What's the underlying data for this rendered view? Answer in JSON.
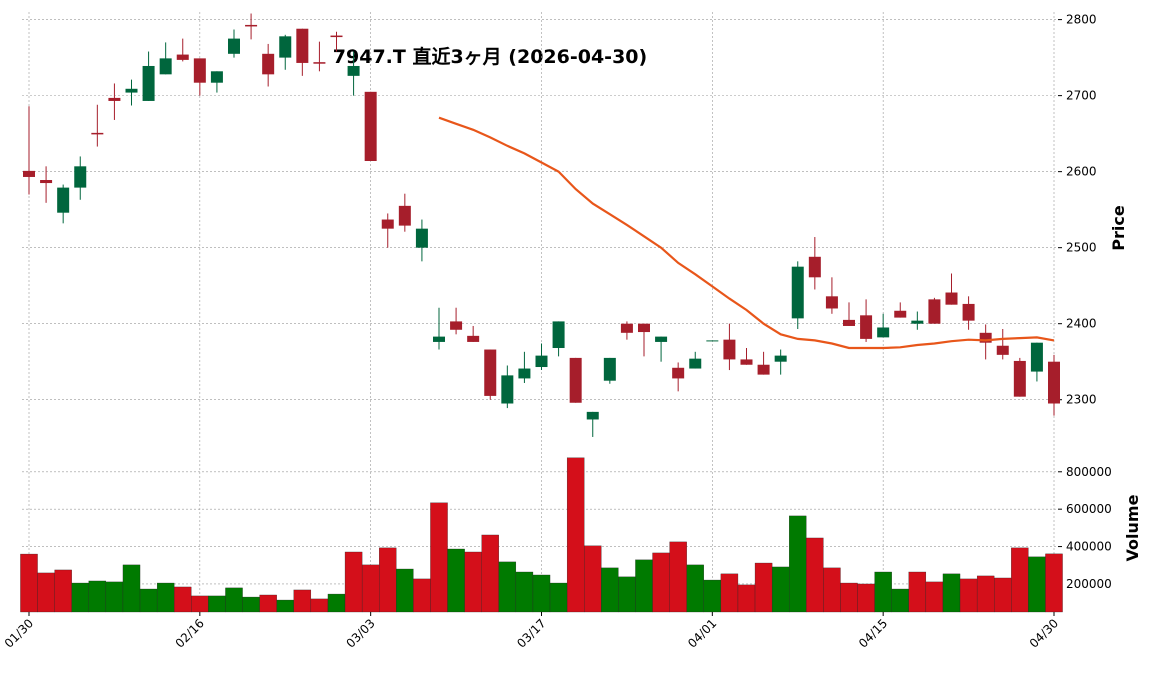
{
  "chart_data": {
    "type": "candlestick",
    "title": "7947.T 直近3ヶ月 (2026-04-30)",
    "categories": [
      "01/30",
      null,
      null,
      null,
      null,
      null,
      null,
      null,
      null,
      null,
      "02/16",
      null,
      null,
      null,
      null,
      null,
      null,
      null,
      null,
      null,
      "03/03",
      null,
      null,
      null,
      null,
      null,
      null,
      null,
      null,
      null,
      "03/17",
      null,
      null,
      null,
      null,
      null,
      null,
      null,
      null,
      null,
      "04/01",
      null,
      null,
      null,
      null,
      null,
      null,
      null,
      null,
      null,
      "04/15",
      null,
      null,
      null,
      null,
      null,
      null,
      null,
      null,
      null,
      "04/30"
    ],
    "open": [
      2601,
      2589,
      2546,
      2579,
      2651,
      2697,
      2704,
      2693,
      2728,
      2754,
      2749,
      2717,
      2755,
      2793,
      2755,
      2750,
      2788,
      2744,
      2779,
      2726,
      2705,
      2537,
      2555,
      2500,
      2376,
      2403,
      2384,
      2366,
      2295,
      2328,
      2343,
      2368,
      2355,
      2274,
      2325,
      2400,
      2400,
      2376,
      2342,
      2341,
      2377,
      2379,
      2353,
      2346,
      2350,
      2407,
      2488,
      2436,
      2405,
      2411,
      2382,
      2417,
      2400,
      2432,
      2441,
      2426,
      2388,
      2371,
      2351,
      2337,
      2350
    ],
    "high": [
      2686,
      2607,
      2583,
      2620,
      2688,
      2716,
      2721,
      2758,
      2770,
      2775,
      2749,
      2732,
      2787,
      2808,
      2768,
      2780,
      2788,
      2771,
      2784,
      2758,
      2705,
      2545,
      2571,
      2537,
      2421,
      2421,
      2397,
      2366,
      2345,
      2363,
      2374,
      2403,
      2355,
      2284,
      2355,
      2403,
      2400,
      2383,
      2349,
      2363,
      2378,
      2400,
      2368,
      2363,
      2366,
      2482,
      2514,
      2461,
      2428,
      2432,
      2413,
      2428,
      2416,
      2434,
      2466,
      2436,
      2399,
      2393,
      2355,
      2375,
      2359
    ],
    "low": [
      2570,
      2559,
      2532,
      2563,
      2633,
      2668,
      2687,
      2693,
      2728,
      2745,
      2700,
      2704,
      2750,
      2774,
      2712,
      2734,
      2726,
      2732,
      2758,
      2700,
      2614,
      2500,
      2521,
      2482,
      2366,
      2386,
      2376,
      2300,
      2289,
      2322,
      2339,
      2357,
      2296,
      2251,
      2321,
      2379,
      2357,
      2350,
      2311,
      2341,
      2377,
      2339,
      2346,
      2333,
      2333,
      2393,
      2445,
      2413,
      2397,
      2376,
      2382,
      2408,
      2392,
      2400,
      2425,
      2392,
      2353,
      2353,
      2304,
      2324,
      2279
    ],
    "close": [
      2593,
      2585,
      2579,
      2607,
      2649,
      2693,
      2709,
      2739,
      2749,
      2747,
      2717,
      2732,
      2775,
      2791,
      2728,
      2778,
      2743,
      2742,
      2777,
      2739,
      2614,
      2525,
      2529,
      2525,
      2383,
      2392,
      2376,
      2305,
      2332,
      2341,
      2358,
      2403,
      2296,
      2284,
      2355,
      2388,
      2389,
      2383,
      2328,
      2354,
      2378,
      2353,
      2346,
      2333,
      2358,
      2475,
      2461,
      2420,
      2397,
      2380,
      2395,
      2408,
      2404,
      2400,
      2425,
      2404,
      2375,
      2359,
      2304,
      2375,
      2295
    ],
    "up_color": "#00663d",
    "down_color": "#a61e2b",
    "ma": {
      "color": "#e8561a",
      "values": [
        null,
        null,
        null,
        null,
        null,
        null,
        null,
        null,
        null,
        null,
        null,
        null,
        null,
        null,
        null,
        null,
        null,
        null,
        null,
        null,
        null,
        null,
        null,
        null,
        2671,
        2663,
        2655,
        2645,
        2634,
        2624,
        2612,
        2600,
        2577,
        2558,
        2544,
        2530,
        2515,
        2500,
        2480,
        2465,
        2449,
        2433,
        2418,
        2400,
        2386,
        2380,
        2378,
        2374,
        2368,
        2368,
        2368,
        2369,
        2372,
        2374,
        2377,
        2379,
        2378,
        2380,
        2381,
        2382,
        2378
      ]
    },
    "ylabel": "Price",
    "ylim": [
      2247,
      2810
    ],
    "yticks": [
      2300,
      2400,
      2500,
      2600,
      2700,
      2800
    ],
    "grid": true,
    "volume": {
      "ylabel": "Volume",
      "ylim": [
        50000,
        970000
      ],
      "yticks": [
        200000,
        400000,
        600000,
        800000
      ],
      "values": [
        360000,
        259000,
        275000,
        205000,
        216000,
        211000,
        302000,
        173000,
        205000,
        184000,
        136000,
        136000,
        179000,
        130000,
        141000,
        114000,
        168000,
        120000,
        146000,
        371000,
        302000,
        393000,
        280000,
        227000,
        634000,
        387000,
        371000,
        462000,
        318000,
        264000,
        248000,
        205000,
        875000,
        404000,
        286000,
        238000,
        329000,
        366000,
        425000,
        302000,
        221000,
        254000,
        195000,
        312000,
        291000,
        564000,
        446000,
        286000,
        205000,
        200000,
        264000,
        173000,
        264000,
        211000,
        254000,
        227000,
        243000,
        232000,
        393000,
        345000,
        361000
      ],
      "colors": [
        "#d40f1a",
        "#d40f1a",
        "#d40f1a",
        "#007a00",
        "#007a00",
        "#007a00",
        "#007a00",
        "#007a00",
        "#007a00",
        "#d40f1a",
        "#d40f1a",
        "#007a00",
        "#007a00",
        "#007a00",
        "#d40f1a",
        "#007a00",
        "#d40f1a",
        "#d40f1a",
        "#007a00",
        "#d40f1a",
        "#d40f1a",
        "#d40f1a",
        "#007a00",
        "#d40f1a",
        "#d40f1a",
        "#007a00",
        "#d40f1a",
        "#d40f1a",
        "#007a00",
        "#007a00",
        "#007a00",
        "#007a00",
        "#d40f1a",
        "#d40f1a",
        "#007a00",
        "#007a00",
        "#007a00",
        "#d40f1a",
        "#d40f1a",
        "#007a00",
        "#007a00",
        "#d40f1a",
        "#d40f1a",
        "#d40f1a",
        "#007a00",
        "#007a00",
        "#d40f1a",
        "#d40f1a",
        "#d40f1a",
        "#d40f1a",
        "#007a00",
        "#007a00",
        "#d40f1a",
        "#d40f1a",
        "#007a00",
        "#d40f1a",
        "#d40f1a",
        "#d40f1a",
        "#d40f1a",
        "#007a00",
        "#d40f1a"
      ]
    }
  }
}
